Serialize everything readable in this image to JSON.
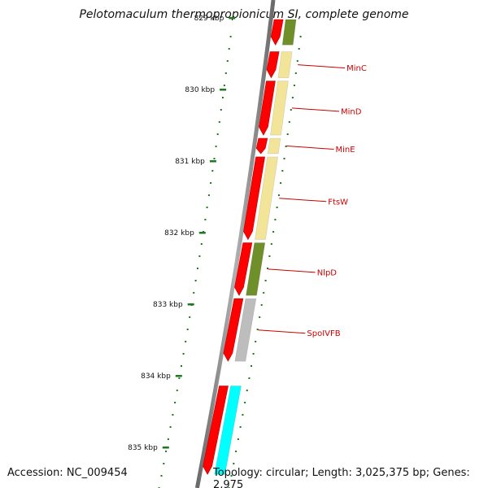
{
  "title": "Pelotomaculum thermopropionicum SI, complete genome",
  "footer": {
    "accession": "Accession: NC_009454",
    "summary": "Topology: circular; Length: 3,025,375 bp; Genes: 2,975"
  },
  "colors": {
    "backbone": "#808080",
    "cds": "#ff0000",
    "tick": "#1e7a1e",
    "label": "#cc0000",
    "feature_yellow": "#f2e59a",
    "feature_olive": "#6f8f2a",
    "feature_gray": "#bdbdbd",
    "feature_cyan": "#00ffff"
  },
  "axis": {
    "unit": "kbp",
    "ticks": [
      {
        "label": "829 kbp",
        "kbp": 829
      },
      {
        "label": "830 kbp",
        "kbp": 830
      },
      {
        "label": "831 kbp",
        "kbp": 831
      },
      {
        "label": "832 kbp",
        "kbp": 832
      },
      {
        "label": "833 kbp",
        "kbp": 833
      },
      {
        "label": "834 kbp",
        "kbp": 834
      },
      {
        "label": "835 kbp",
        "kbp": 835
      }
    ]
  },
  "genes": [
    {
      "name": "MinC",
      "start_kbp": 829.45,
      "end_kbp": 829.86,
      "color_key": "feature_yellow"
    },
    {
      "name": "MinD",
      "start_kbp": 829.86,
      "end_kbp": 830.66,
      "color_key": "feature_yellow"
    },
    {
      "name": "MinE",
      "start_kbp": 830.66,
      "end_kbp": 830.92,
      "color_key": "feature_yellow"
    },
    {
      "name": "FtsW",
      "start_kbp": 830.92,
      "end_kbp": 832.12,
      "color_key": "feature_yellow"
    },
    {
      "name": "NlpD",
      "start_kbp": 832.12,
      "end_kbp": 832.9,
      "color_key": "feature_olive"
    },
    {
      "name": "SpoIVFB",
      "start_kbp": 832.9,
      "end_kbp": 833.82,
      "color_key": "feature_gray"
    },
    {
      "name": "",
      "start_kbp": 834.12,
      "end_kbp": 835.4,
      "color_key": "feature_cyan"
    }
  ],
  "partial_top_gene": {
    "start_kbp": 829.0,
    "end_kbp": 829.4,
    "color_key": "feature_olive"
  }
}
